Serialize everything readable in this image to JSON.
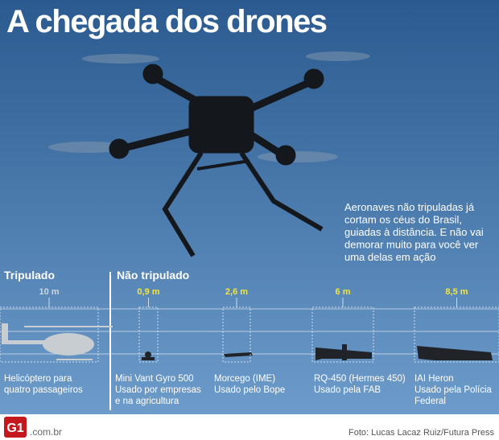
{
  "header": {
    "title": "A chegada dos drones"
  },
  "intro": [
    "Aeronaves não tripuladas já",
    "cortam os céus do Brasil,",
    "guiadas à distância. E não vai",
    "demorar muito para você ver",
    "uma delas em ação"
  ],
  "sections": {
    "manned": "Tripulado",
    "unmanned": "Não tripulado"
  },
  "aircraft": [
    {
      "size": "10 m",
      "lines": [
        "Helicóptero para",
        "quatro passageiros"
      ]
    },
    {
      "size": "0,9 m",
      "lines": [
        "Mini Vant Gyro 500",
        "Usado por empresas",
        "e na agricultura"
      ]
    },
    {
      "size": "2,6 m",
      "lines": [
        "Morcego (IME)",
        "Usado pelo Bope"
      ]
    },
    {
      "size": "6 m",
      "lines": [
        "RQ-450 (Hermes 450)",
        "Usado pela FAB"
      ]
    },
    {
      "size": "8,5 m",
      "lines": [
        "IAI Heron",
        "Usado pela Polícia",
        "Federal"
      ]
    }
  ],
  "footer": {
    "logo": "G1",
    "domain": ".com.br",
    "credit": "Foto: Lucas Lacaz Ruiz/Futura Press"
  }
}
